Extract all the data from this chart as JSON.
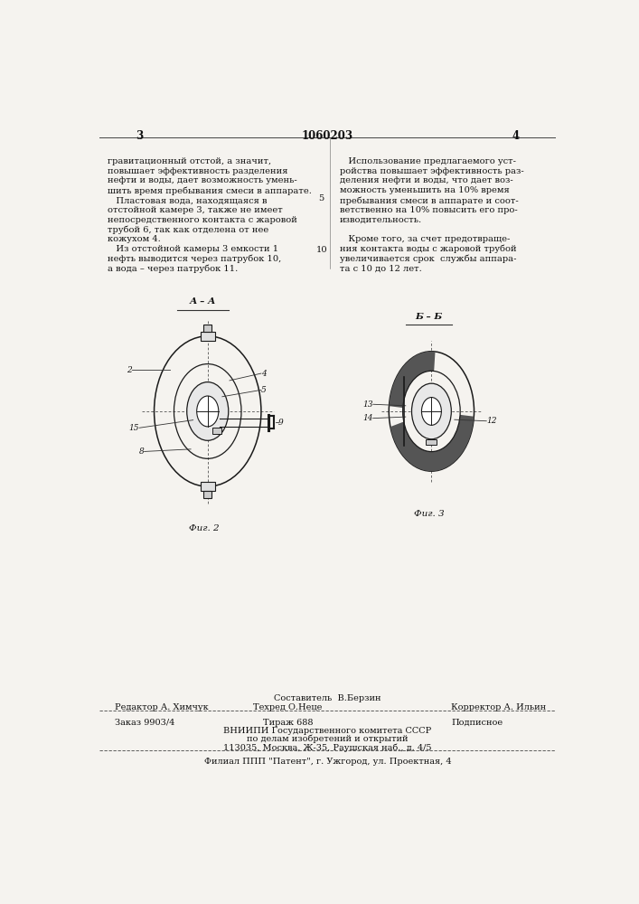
{
  "bg_color": "#f5f3ef",
  "page_width": 7.07,
  "page_height": 10.0,
  "left_col_text": [
    [
      "гравитационный отстой, а значит,",
      0.93
    ],
    [
      "повышает эффективность разделения",
      0.916
    ],
    [
      "нефти и воды, дает возможность умень-",
      0.902
    ],
    [
      "шить время пребывания смеси в аппарате.",
      0.888
    ],
    [
      "   Пластовая вода, находящаяся в",
      0.874
    ],
    [
      "отстойной камере 3, также не имеет",
      0.86
    ],
    [
      "непосредственного контакта с жаровой",
      0.846
    ],
    [
      "трубой 6, так как отделена от нее",
      0.832
    ],
    [
      "кожухом 4.",
      0.818
    ],
    [
      "   Из отстойной камеры 3 емкости 1",
      0.804
    ],
    [
      "нефть выводится через патрубок 10,",
      0.79
    ],
    [
      "а вода – через патрубок 11.",
      0.776
    ]
  ],
  "right_col_text": [
    [
      "   Использование предлагаемого уст-",
      0.93
    ],
    [
      "ройства повышает эффективность раз-",
      0.916
    ],
    [
      "деления нефти и воды, что дает воз-",
      0.902
    ],
    [
      "можность уменьшить на 10% время",
      0.888
    ],
    [
      "пребывания смеси в аппарате и соот-",
      0.874
    ],
    [
      "ветственно на 10% повысить его про-",
      0.86
    ],
    [
      "изводительность.",
      0.846
    ],
    [
      "   Кроме того, за счет предотвраще-",
      0.818
    ],
    [
      "ния контакта воды с жаровой трубой",
      0.804
    ],
    [
      "увеличивается срок  службы аппара-",
      0.79
    ],
    [
      "та с 10 до 12 лет.",
      0.776
    ]
  ],
  "footer_editor": "Редактор А. Химчук",
  "footer_composer_label": "Составитель  В.Берзин",
  "footer_techred": "Техред О.Неце",
  "footer_corrector": "Корректор А. Ильин",
  "footer_order": "Заказ 9903/4",
  "footer_tirazh": "Тираж 688",
  "footer_podpisnoe": "Подписное",
  "footer_vniiipi": "ВНИИПИ Государственного комитета СССР",
  "footer_po_delam": "по делам изобретений и открытий",
  "footer_address": "113035, Москва, Ж-35, Раушская наб., д. 4/5",
  "footer_filial": "Филиал ППП \"Патент\", г. Ужгород, ул. Проектная, 4"
}
